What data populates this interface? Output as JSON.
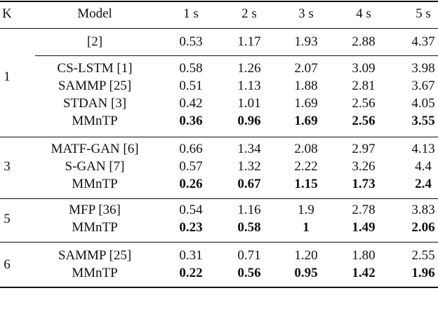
{
  "table": {
    "header": [
      "K",
      "Model",
      "1 s",
      "2 s",
      "3 s",
      "4 s",
      "5 s"
    ],
    "groups": [
      {
        "k": "1",
        "rows": [
          {
            "model": "[2]",
            "values": [
              "0.53",
              "1.17",
              "1.93",
              "2.88",
              "4.37"
            ],
            "bold": false
          },
          {
            "model": "CS-LSTM [1]",
            "values": [
              "0.58",
              "1.26",
              "2.07",
              "3.09",
              "3.98"
            ],
            "bold": false
          },
          {
            "model": "SAMMP [25]",
            "values": [
              "0.51",
              "1.13",
              "1.88",
              "2.81",
              "3.67"
            ],
            "bold": false
          },
          {
            "model": "STDAN [3]",
            "values": [
              "0.42",
              "1.01",
              "1.69",
              "2.56",
              "4.05"
            ],
            "bold": false
          },
          {
            "model": "MMnTP",
            "values": [
              "0.36",
              "0.96",
              "1.69",
              "2.56",
              "3.55"
            ],
            "bold": true
          }
        ]
      },
      {
        "k": "3",
        "rows": [
          {
            "model": "MATF-GAN [6]",
            "values": [
              "0.66",
              "1.34",
              "2.08",
              "2.97",
              "4.13"
            ],
            "bold": false
          },
          {
            "model": "S-GAN [7]",
            "values": [
              "0.57",
              "1.32",
              "2.22",
              "3.26",
              "4.4"
            ],
            "bold": false
          },
          {
            "model": "MMnTP",
            "values": [
              "0.26",
              "0.67",
              "1.15",
              "1.73",
              "2.4"
            ],
            "bold": true
          }
        ]
      },
      {
        "k": "5",
        "rows": [
          {
            "model": "MFP [36]",
            "values": [
              "0.54",
              "1.16",
              "1.9",
              "2.78",
              "3.83"
            ],
            "bold": false
          },
          {
            "model": "MMnTP",
            "values": [
              "0.23",
              "0.58",
              "1",
              "1.49",
              "2.06"
            ],
            "bold": true
          }
        ]
      },
      {
        "k": "6",
        "rows": [
          {
            "model": "SAMMP [25]",
            "values": [
              "0.31",
              "0.71",
              "1.20",
              "1.80",
              "2.55"
            ],
            "bold": false
          },
          {
            "model": "MMnTP",
            "values": [
              "0.22",
              "0.56",
              "0.95",
              "1.42",
              "1.96"
            ],
            "bold": true
          }
        ]
      }
    ]
  }
}
